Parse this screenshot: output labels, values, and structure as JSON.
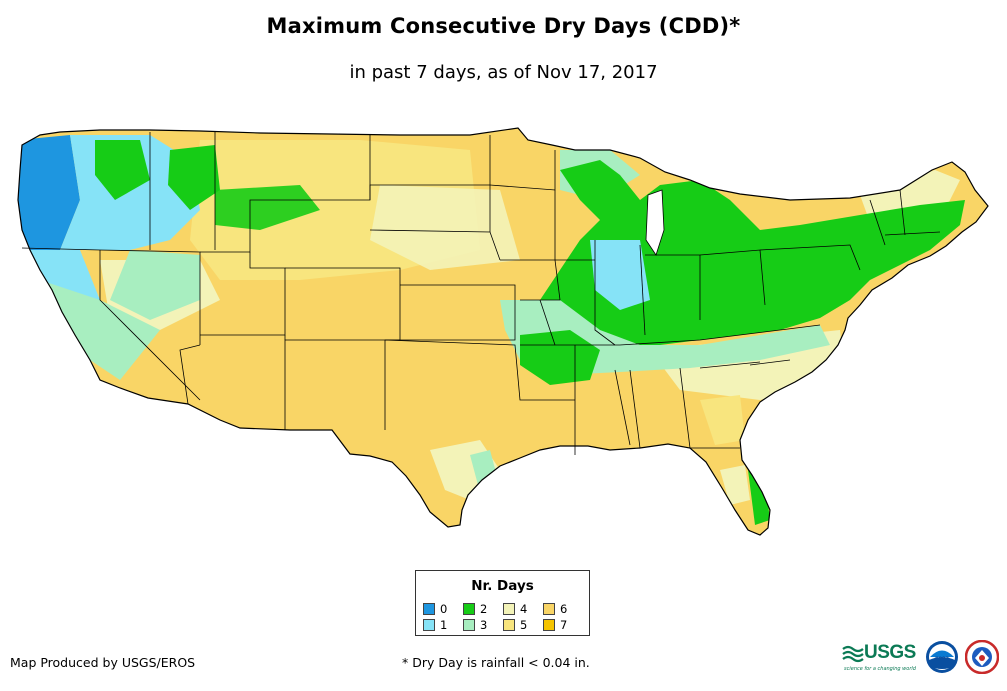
{
  "title": "Maximum Consecutive Dry Days (CDD)*",
  "subtitle": "in past 7 days, as of Nov 17, 2017",
  "legend": {
    "title": "Nr. Days",
    "items": [
      {
        "label": "0",
        "color": "#1e96e0"
      },
      {
        "label": "1",
        "color": "#86e3f7"
      },
      {
        "label": "2",
        "color": "#16cc16"
      },
      {
        "label": "3",
        "color": "#a8eec0"
      },
      {
        "label": "4",
        "color": "#f3f3b8"
      },
      {
        "label": "5",
        "color": "#f8e57e"
      },
      {
        "label": "6",
        "color": "#f9d566"
      },
      {
        "label": "7",
        "color": "#f5c400"
      }
    ]
  },
  "credits": {
    "produced_by": "Map Produced by USGS/EROS",
    "footnote": "* Dry Day is rainfall < 0.04 in."
  },
  "logos": {
    "usgs_text": "USGS",
    "usgs_tagline": "science for a changing world",
    "noaa_text": "noaa"
  },
  "colors": {
    "state_border": "#000000",
    "background": "#ffffff"
  }
}
